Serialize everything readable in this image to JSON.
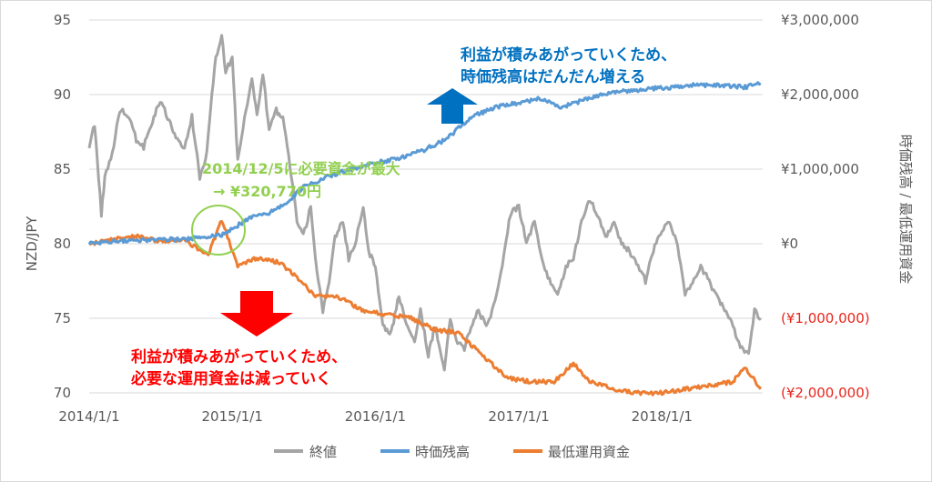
{
  "chart_data": {
    "type": "line",
    "xlabel": "",
    "ylabel_left": "NZD/JPY",
    "ylabel_right": "時価残高 / 最低運用資金",
    "ylim_left": [
      70,
      95
    ],
    "ylim_right": [
      -2000000,
      3000000
    ],
    "grid": "horizontal",
    "legend_position": "bottom",
    "x_ticks": [
      "2014/1/1",
      "2015/1/1",
      "2016/1/1",
      "2017/1/1",
      "2018/1/1"
    ],
    "y_ticks_left": [
      "70",
      "75",
      "80",
      "85",
      "90",
      "95"
    ],
    "y_ticks_right": [
      "(¥2,000,000)",
      "(¥1,000,000)",
      "¥0",
      "¥1,000,000",
      "¥2,000,000",
      "¥3,000,000"
    ],
    "series": [
      {
        "name": "終値",
        "axis": "left",
        "color": "#a5a5a5",
        "points": [
          [
            "2014/1/1",
            86.5
          ],
          [
            "2014/1/15",
            88.0
          ],
          [
            "2014/2/1",
            82.0
          ],
          [
            "2014/2/10",
            84.5
          ],
          [
            "2014/3/1",
            86.0
          ],
          [
            "2014/3/20",
            89.0
          ],
          [
            "2014/4/15",
            88.5
          ],
          [
            "2014/5/1",
            87.0
          ],
          [
            "2014/5/20",
            86.5
          ],
          [
            "2014/6/15",
            88.5
          ],
          [
            "2014/7/1",
            89.5
          ],
          [
            "2014/7/20",
            88.5
          ],
          [
            "2014/8/10",
            87.0
          ],
          [
            "2014/9/1",
            86.5
          ],
          [
            "2014/9/20",
            88.5
          ],
          [
            "2014/10/10",
            84.5
          ],
          [
            "2014/10/25",
            85.5
          ],
          [
            "2014/11/10",
            90.0
          ],
          [
            "2014/11/20",
            92.5
          ],
          [
            "2014/12/5",
            94.0
          ],
          [
            "2014/12/15",
            91.5
          ],
          [
            "2015/1/1",
            92.5
          ],
          [
            "2015/1/15",
            85.5
          ],
          [
            "2015/2/1",
            88.5
          ],
          [
            "2015/2/20",
            91.0
          ],
          [
            "2015/3/5",
            88.5
          ],
          [
            "2015/3/20",
            91.5
          ],
          [
            "2015/4/5",
            87.5
          ],
          [
            "2015/4/20",
            89.0
          ],
          [
            "2015/5/10",
            88.5
          ],
          [
            "2015/6/1",
            84.5
          ],
          [
            "2015/6/15",
            81.5
          ],
          [
            "2015/7/1",
            80.5
          ],
          [
            "2015/7/20",
            82.5
          ],
          [
            "2015/8/1",
            79.0
          ],
          [
            "2015/8/20",
            75.5
          ],
          [
            "2015/9/5",
            77.5
          ],
          [
            "2015/9/20",
            80.5
          ],
          [
            "2015/10/10",
            81.5
          ],
          [
            "2015/10/25",
            79.0
          ],
          [
            "2015/11/10",
            80.0
          ],
          [
            "2015/12/1",
            82.5
          ],
          [
            "2015/12/15",
            79.5
          ],
          [
            "2016/1/1",
            78.5
          ],
          [
            "2016/1/20",
            74.5
          ],
          [
            "2016/2/10",
            74.0
          ],
          [
            "2016/3/1",
            76.5
          ],
          [
            "2016/3/20",
            74.5
          ],
          [
            "2016/4/10",
            73.5
          ],
          [
            "2016/4/25",
            75.5
          ],
          [
            "2016/5/15",
            72.5
          ],
          [
            "2016/6/1",
            74.5
          ],
          [
            "2016/6/25",
            71.5
          ],
          [
            "2016/7/10",
            75.0
          ],
          [
            "2016/7/25",
            73.5
          ],
          [
            "2016/8/15",
            73.0
          ],
          [
            "2016/9/1",
            74.5
          ],
          [
            "2016/9/20",
            75.5
          ],
          [
            "2016/10/10",
            74.5
          ],
          [
            "2016/11/1",
            76.0
          ],
          [
            "2016/11/20",
            78.5
          ],
          [
            "2016/12/10",
            82.0
          ],
          [
            "2017/1/1",
            82.5
          ],
          [
            "2017/1/20",
            80.0
          ],
          [
            "2017/2/10",
            81.5
          ],
          [
            "2017/3/1",
            79.0
          ],
          [
            "2017/3/20",
            77.5
          ],
          [
            "2017/4/10",
            76.5
          ],
          [
            "2017/5/1",
            78.5
          ],
          [
            "2017/5/20",
            79.0
          ],
          [
            "2017/6/10",
            81.5
          ],
          [
            "2017/7/1",
            83.0
          ],
          [
            "2017/7/20",
            82.0
          ],
          [
            "2017/8/10",
            80.5
          ],
          [
            "2017/9/1",
            81.5
          ],
          [
            "2017/9/20",
            80.0
          ],
          [
            "2017/10/10",
            79.5
          ],
          [
            "2017/11/1",
            78.5
          ],
          [
            "2017/11/20",
            77.5
          ],
          [
            "2017/12/10",
            79.5
          ],
          [
            "2018/1/1",
            81.0
          ],
          [
            "2018/1/20",
            81.5
          ],
          [
            "2018/2/10",
            80.0
          ],
          [
            "2018/3/1",
            76.5
          ],
          [
            "2018/3/20",
            77.5
          ],
          [
            "2018/4/10",
            78.5
          ],
          [
            "2018/5/1",
            77.5
          ],
          [
            "2018/5/20",
            76.5
          ],
          [
            "2018/6/10",
            75.5
          ],
          [
            "2018/7/1",
            74.5
          ],
          [
            "2018/7/20",
            73.0
          ],
          [
            "2018/8/10",
            72.5
          ],
          [
            "2018/8/25",
            75.5
          ],
          [
            "2018/9/10",
            75.0
          ]
        ]
      },
      {
        "name": "時価残高",
        "axis": "right",
        "color": "#5b9bd5",
        "points": [
          [
            "2014/1/1",
            0
          ],
          [
            "2014/3/1",
            30000
          ],
          [
            "2014/6/1",
            50000
          ],
          [
            "2014/9/1",
            60000
          ],
          [
            "2014/11/1",
            100000
          ],
          [
            "2014/12/5",
            120000
          ],
          [
            "2015/1/1",
            200000
          ],
          [
            "2015/2/15",
            350000
          ],
          [
            "2015/4/1",
            400000
          ],
          [
            "2015/5/15",
            530000
          ],
          [
            "2015/7/1",
            760000
          ],
          [
            "2015/9/1",
            900000
          ],
          [
            "2015/11/1",
            1000000
          ],
          [
            "2016/1/1",
            1080000
          ],
          [
            "2016/3/1",
            1150000
          ],
          [
            "2016/5/1",
            1250000
          ],
          [
            "2016/7/1",
            1400000
          ],
          [
            "2016/8/1",
            1560000
          ],
          [
            "2016/9/1",
            1700000
          ],
          [
            "2016/11/1",
            1830000
          ],
          [
            "2017/1/1",
            1890000
          ],
          [
            "2017/3/1",
            1950000
          ],
          [
            "2017/4/15",
            1830000
          ],
          [
            "2017/6/1",
            1900000
          ],
          [
            "2017/8/1",
            2000000
          ],
          [
            "2017/10/1",
            2050000
          ],
          [
            "2017/12/1",
            2080000
          ],
          [
            "2018/2/1",
            2100000
          ],
          [
            "2018/4/1",
            2130000
          ],
          [
            "2018/6/1",
            2120000
          ],
          [
            "2018/8/1",
            2100000
          ],
          [
            "2018/9/10",
            2150000
          ]
        ]
      },
      {
        "name": "最低運用資金",
        "axis": "right",
        "color": "#ed7d31",
        "points": [
          [
            "2014/1/1",
            0
          ],
          [
            "2014/3/1",
            60000
          ],
          [
            "2014/5/1",
            100000
          ],
          [
            "2014/7/1",
            30000
          ],
          [
            "2014/9/1",
            50000
          ],
          [
            "2014/11/1",
            -150000
          ],
          [
            "2014/12/5",
            320770
          ],
          [
            "2014/12/20",
            100000
          ],
          [
            "2015/1/15",
            -300000
          ],
          [
            "2015/3/1",
            -200000
          ],
          [
            "2015/5/1",
            -250000
          ],
          [
            "2015/6/15",
            -450000
          ],
          [
            "2015/8/1",
            -700000
          ],
          [
            "2015/10/1",
            -720000
          ],
          [
            "2015/12/1",
            -900000
          ],
          [
            "2016/2/1",
            -950000
          ],
          [
            "2016/4/1",
            -1000000
          ],
          [
            "2016/6/1",
            -1150000
          ],
          [
            "2016/8/1",
            -1200000
          ],
          [
            "2016/10/1",
            -1500000
          ],
          [
            "2016/12/1",
            -1800000
          ],
          [
            "2017/2/1",
            -1850000
          ],
          [
            "2017/4/1",
            -1850000
          ],
          [
            "2017/5/20",
            -1600000
          ],
          [
            "2017/7/1",
            -1850000
          ],
          [
            "2017/9/1",
            -1950000
          ],
          [
            "2017/11/1",
            -2000000
          ],
          [
            "2018/1/1",
            -2000000
          ],
          [
            "2018/3/1",
            -1950000
          ],
          [
            "2018/5/1",
            -1900000
          ],
          [
            "2018/7/1",
            -1850000
          ],
          [
            "2018/8/1",
            -1650000
          ],
          [
            "2018/9/10",
            -1950000
          ]
        ]
      }
    ],
    "annotations": [
      {
        "id": "peak",
        "lines": [
          "2014/12/5に必要資金が最大",
          "→ ¥320,770円"
        ],
        "color": "#92d050"
      },
      {
        "id": "up",
        "lines": [
          "利益が積みあがっていくため、",
          "時価残高はだんだん増える"
        ],
        "color": "#0070c0"
      },
      {
        "id": "down",
        "lines": [
          "利益が積みあがっていくため、",
          "必要な運用資金は減っていく"
        ],
        "color": "#ff0000"
      }
    ]
  }
}
